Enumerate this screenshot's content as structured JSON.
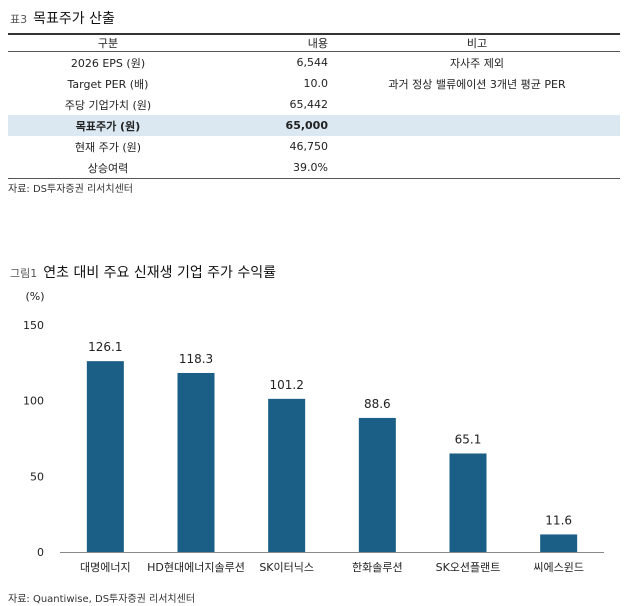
{
  "table_section": {
    "label": "표3",
    "title": "목표주가 산출",
    "headers": [
      "구분",
      "내용",
      "비고"
    ],
    "rows": [
      [
        "2026 EPS (원)",
        "6,544",
        "자사주 제외"
      ],
      [
        "Target PER (배)",
        "10.0",
        "과거 정상 밸류에이션 3개년 평균 PER"
      ],
      [
        "주당 기업가치 (원)",
        "65,442",
        ""
      ],
      [
        "목표주가 (원)",
        "65,000",
        ""
      ],
      [
        "현재 주가 (원)",
        "46,750",
        ""
      ],
      [
        "상승여력",
        "39.0%",
        ""
      ]
    ],
    "source": "자료: DS투자증권 리서치센터"
  },
  "chart_section": {
    "label": "그림1",
    "title": "연초 대비 주요 신재생 기업 주가 수익률",
    "source": "자료: Quantiwise, DS투자증권 리서치센터"
  },
  "chart_data": {
    "type": "bar",
    "ylabel": "(%)",
    "ylim": [
      0,
      150
    ],
    "yticks": [
      0,
      50,
      100,
      150
    ],
    "categories": [
      "대명에너지",
      "HD현대에너지솔루션",
      "SK이터닉스",
      "한화솔루션",
      "SK오션플랜트",
      "씨에스윈드"
    ],
    "values": [
      126.1,
      118.3,
      101.2,
      88.6,
      65.1,
      11.6
    ],
    "value_labels": [
      "126.1",
      "118.3",
      "101.2",
      "88.6",
      "65.1",
      "11.6"
    ],
    "bar_color": "#1b5e86",
    "grid": false
  }
}
